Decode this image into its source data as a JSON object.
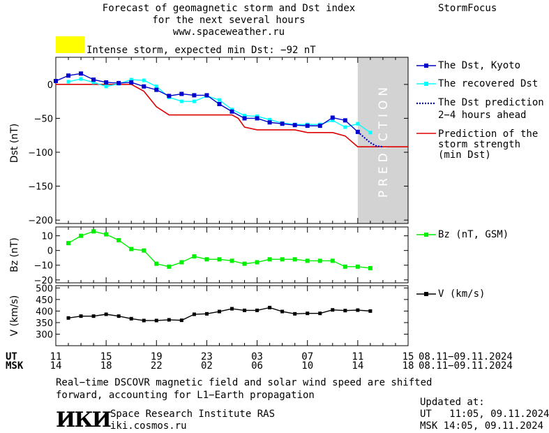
{
  "header": {
    "title_line1": "Forecast of geomagnetic storm and Dst index",
    "title_line2": "for the next several hours",
    "url": "www.spaceweather.ru",
    "brand": "StormFocus",
    "storm_label": "Intense storm, expected min Dst: −92 nT",
    "storm_color": "#ffff00"
  },
  "prediction_watermark": "PREDICTION",
  "time_axis": {
    "ut_label": "UT",
    "msk_label": "MSK",
    "ut_ticks": [
      "11",
      "15",
      "19",
      "23",
      "03",
      "07",
      "11",
      "15"
    ],
    "msk_ticks": [
      "14",
      "18",
      "22",
      "02",
      "06",
      "10",
      "14",
      "18"
    ],
    "ut_range": "08.11−09.11.2024",
    "msk_range": "08.11−09.11.2024"
  },
  "legend": {
    "dst_kyoto": "The Dst, Kyoto",
    "dst_recovered": "The recovered Dst",
    "dst_prediction_1": "The Dst prediction",
    "dst_prediction_2": "2−4 hours ahead",
    "strength_1": "Prediction of the",
    "strength_2": "storm strength",
    "strength_3": "(min Dst)",
    "bz": "Bz (nT, GSM)",
    "v": "V (km/s)"
  },
  "footer": {
    "note_line1": "Real−time DSCOVR magnetic field and solar wind speed are shifted",
    "note_line2": "forward, accounting for L1−Earth propagation",
    "logo_text": "ИКИ",
    "institute": "Space Research Institute RAS",
    "site": "iki.cosmos.ru",
    "updated_label": "Updated at:",
    "updated_ut": "UT   11:05, 09.11.2024",
    "updated_msk": "MSK 14:05, 09.11.2024"
  },
  "colors": {
    "kyoto": "#0000cc",
    "recovered": "#00ffff",
    "prediction": "#0000cc",
    "strength": "#dd0000",
    "bz": "#00ee00",
    "v": "#000000",
    "prediction_band": "#d3d3d3"
  },
  "chart_data": [
    {
      "type": "line",
      "ylabel": "Dst (nT)",
      "ylim": [
        -205,
        40
      ],
      "yticks": [
        0,
        -50,
        -100,
        -150,
        -200
      ],
      "x_unit": "hours after 11 UT 08.11.2024",
      "xlim": [
        0,
        28
      ],
      "prediction_start": 24,
      "series": [
        {
          "name": "The Dst, Kyoto",
          "x": [
            0,
            1,
            2,
            3,
            4,
            5,
            6,
            7,
            8,
            9,
            10,
            11,
            12,
            13,
            14,
            15,
            16,
            17,
            18,
            19,
            20,
            21,
            22,
            23,
            24
          ],
          "values": [
            5,
            13,
            16,
            7,
            3,
            2,
            3,
            -3,
            -8,
            -17,
            -14,
            -16,
            -16,
            -29,
            -40,
            -50,
            -50,
            -56,
            -58,
            -60,
            -61,
            -61,
            -49,
            -53,
            -70
          ]
        },
        {
          "name": "The recovered Dst",
          "x": [
            1,
            2,
            3,
            4,
            5,
            6,
            7,
            8,
            9,
            10,
            11,
            12,
            13,
            14,
            15,
            16,
            17,
            18,
            19,
            20,
            21,
            22,
            23,
            24,
            25
          ],
          "values": [
            4,
            8,
            3,
            -3,
            1,
            7,
            6,
            -3,
            -19,
            -25,
            -25,
            -17,
            -23,
            -37,
            -46,
            -47,
            -52,
            -57,
            -59,
            -59,
            -59,
            -53,
            -63,
            -58,
            -71
          ]
        },
        {
          "name": "The Dst prediction 2−4 hours ahead",
          "x": [
            24,
            24.5,
            25,
            25.5,
            26
          ],
          "values": [
            -70,
            -78,
            -86,
            -91,
            -92
          ]
        },
        {
          "name": "Prediction of the storm strength (min Dst)",
          "x": [
            0,
            6,
            7,
            8,
            9,
            14,
            14.5,
            15,
            16,
            17,
            18,
            19,
            20,
            21,
            22,
            23,
            24,
            28
          ],
          "values": [
            0,
            0,
            -10,
            -33,
            -45,
            -45,
            -50,
            -63,
            -67,
            -67,
            -67,
            -67,
            -71,
            -71,
            -71,
            -76,
            -92,
            -92
          ]
        }
      ]
    },
    {
      "type": "line",
      "ylabel": "Bz (nT)",
      "ylim": [
        -22,
        16
      ],
      "yticks": [
        10,
        0,
        -10,
        -20
      ],
      "series": [
        {
          "name": "Bz (nT, GSM)",
          "x": [
            1,
            2,
            3,
            4,
            5,
            6,
            7,
            8,
            9,
            10,
            11,
            12,
            13,
            14,
            15,
            16,
            17,
            18,
            19,
            20,
            21,
            22,
            23,
            24,
            25
          ],
          "values": [
            5,
            10,
            13,
            11,
            7,
            1,
            0,
            -9,
            -11,
            -8,
            -4,
            -6,
            -6,
            -7,
            -9,
            -8,
            -6,
            -6,
            -6,
            -7,
            -7,
            -7,
            -11,
            -11,
            -12
          ]
        }
      ]
    },
    {
      "type": "line",
      "ylabel": "V (km/s)",
      "ylim": [
        250,
        510
      ],
      "yticks": [
        500,
        450,
        400,
        350,
        300
      ],
      "series": [
        {
          "name": "V (km/s)",
          "x": [
            1,
            2,
            3,
            4,
            5,
            6,
            7,
            8,
            9,
            10,
            11,
            12,
            13,
            14,
            15,
            16,
            17,
            18,
            19,
            20,
            21,
            22,
            23,
            24,
            25
          ],
          "values": [
            370,
            378,
            378,
            386,
            378,
            367,
            359,
            359,
            362,
            360,
            386,
            388,
            398,
            410,
            403,
            403,
            415,
            398,
            388,
            390,
            390,
            405,
            402,
            404,
            400
          ]
        }
      ]
    }
  ]
}
